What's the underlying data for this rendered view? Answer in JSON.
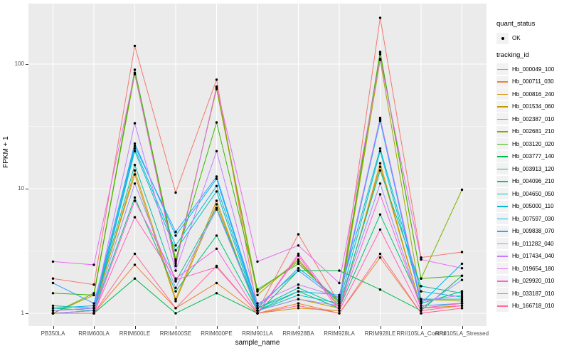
{
  "figure": {
    "background": "#FFFFFF",
    "panel_background": "#EBEBEB",
    "grid_color": "#FFFFFF",
    "tick_color": "#333333",
    "axis_text_color": "#4D4D4D",
    "point_color": "#000000"
  },
  "legend": {
    "quant_status": {
      "title": "quant_status",
      "items": [
        {
          "label": "OK",
          "marker": "point-icon",
          "color": "#000000"
        }
      ]
    },
    "tracking_id": {
      "title": "tracking_id"
    }
  },
  "chart_data": {
    "type": "line",
    "title": "",
    "xlabel": "sample_name",
    "ylabel": "FPKM + 1",
    "y_scale": "log10",
    "y_ticks": [
      1,
      10,
      100
    ],
    "y_minor_ticks": [
      3.1623,
      31.623
    ],
    "ylim": [
      0.79,
      310
    ],
    "grid": "white major+minor on gray panel",
    "legend_position": "right",
    "points": "black dot at every value (quant_status OK)",
    "x_categories": [
      "PB350LA",
      "RRIM600LA",
      "RRIM600LE",
      "RRIM600SE",
      "RRIM600PE",
      "RRIM901LA",
      "RRIM928BA",
      "RRIM928LA",
      "RRIM928LE",
      "RRII105LA_Control",
      "RRII105LA_Stressed"
    ],
    "series": [
      {
        "name": "Hb_000049_100",
        "color": "#F8766D",
        "values": [
          1.9,
          1.7,
          140,
          9.3,
          75,
          1.05,
          4.3,
          1.2,
          235,
          2.8,
          3.1
        ]
      },
      {
        "name": "Hb_000711_030",
        "color": "#EA8331",
        "values": [
          1.0,
          1.0,
          2.45,
          1.1,
          1.75,
          1.0,
          1.2,
          1.0,
          2.8,
          1.0,
          1.1
        ]
      },
      {
        "name": "Hb_000816_240",
        "color": "#D89000",
        "values": [
          1.0,
          1.05,
          14,
          1.3,
          8.0,
          1.0,
          1.1,
          1.05,
          16,
          1.1,
          1.15
        ]
      },
      {
        "name": "Hb_001534_060",
        "color": "#C09B00",
        "values": [
          1.05,
          1.1,
          13,
          1.25,
          7.5,
          1.05,
          1.3,
          1.1,
          15,
          1.1,
          1.2
        ]
      },
      {
        "name": "Hb_002387_010",
        "color": "#A3A500",
        "values": [
          1.0,
          1.4,
          85,
          2.6,
          63,
          1.4,
          2.7,
          1.15,
          108,
          1.3,
          1.25
        ]
      },
      {
        "name": "Hb_002681_210",
        "color": "#7CAE00",
        "values": [
          1.0,
          1.45,
          83,
          2.5,
          65,
          1.5,
          2.6,
          1.2,
          120,
          1.9,
          9.8
        ]
      },
      {
        "name": "Hb_003120_020",
        "color": "#39B600",
        "values": [
          1.45,
          1.4,
          90,
          2.7,
          34,
          1.55,
          2.5,
          1.25,
          125,
          1.9,
          2.0
        ]
      },
      {
        "name": "Hb_003777_140",
        "color": "#00BB4E",
        "values": [
          1.0,
          1.0,
          1.9,
          1.0,
          1.45,
          1.0,
          2.2,
          2.2,
          1.55,
          1.05,
          2.0
        ]
      },
      {
        "name": "Hb_003913_120",
        "color": "#00BF7D",
        "values": [
          1.1,
          1.05,
          8.5,
          1.5,
          4.2,
          1.05,
          1.5,
          1.1,
          6.2,
          1.2,
          1.5
        ]
      },
      {
        "name": "Hb_004096_210",
        "color": "#00C1A3",
        "values": [
          1.15,
          1.1,
          15.5,
          1.8,
          7.0,
          1.1,
          1.6,
          1.15,
          14,
          1.65,
          1.45
        ]
      },
      {
        "name": "Hb_004650_050",
        "color": "#00BFC4",
        "values": [
          1.0,
          1.05,
          20,
          3.2,
          9.5,
          1.05,
          1.4,
          1.2,
          20,
          1.3,
          1.3
        ]
      },
      {
        "name": "Hb_005000_110",
        "color": "#00BADE",
        "values": [
          1.05,
          1.1,
          21,
          3.5,
          10.5,
          1.1,
          1.5,
          1.4,
          21,
          1.5,
          1.35
        ]
      },
      {
        "name": "Hb_007597_030",
        "color": "#00B0F6",
        "values": [
          1.1,
          1.15,
          23,
          4.2,
          12,
          1.1,
          2.3,
          1.3,
          35,
          1.2,
          2.5
        ]
      },
      {
        "name": "Hb_009838_070",
        "color": "#35A2FF",
        "values": [
          1.75,
          1.2,
          22,
          4.5,
          12.5,
          1.15,
          2.2,
          1.25,
          36,
          1.15,
          1.2
        ]
      },
      {
        "name": "Hb_011282_040",
        "color": "#9590FF",
        "values": [
          1.0,
          1.05,
          11,
          1.6,
          6.8,
          1.05,
          1.3,
          1.15,
          11,
          1.1,
          1.85
        ]
      },
      {
        "name": "Hb_017434_040",
        "color": "#C77CFF",
        "values": [
          1.05,
          1.1,
          33.5,
          2.2,
          20,
          1.2,
          1.7,
          1.35,
          37,
          1.25,
          1.4
        ]
      },
      {
        "name": "Hb_019654_180",
        "color": "#E76BF3",
        "values": [
          2.6,
          2.45,
          85,
          2.4,
          66,
          2.6,
          3.5,
          1.75,
          110,
          2.7,
          2.3
        ]
      },
      {
        "name": "Hb_029920_010",
        "color": "#FA62DB",
        "values": [
          1.0,
          1.0,
          8.0,
          1.9,
          3.3,
          1.0,
          3.0,
          1.1,
          9.0,
          1.1,
          1.2
        ]
      },
      {
        "name": "Hb_033187_010",
        "color": "#FF62BC",
        "values": [
          1.0,
          1.0,
          5.9,
          1.85,
          2.35,
          1.0,
          2.9,
          1.05,
          4.7,
          1.05,
          1.15
        ]
      },
      {
        "name": "Hb_166718_010",
        "color": "#FF6A98",
        "values": [
          1.0,
          1.0,
          3.0,
          1.1,
          2.4,
          1.0,
          1.15,
          1.0,
          3.0,
          1.0,
          1.1
        ]
      }
    ]
  }
}
